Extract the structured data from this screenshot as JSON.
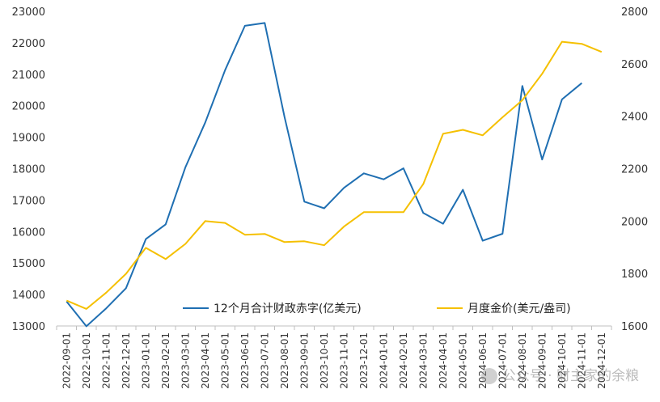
{
  "chart_data": {
    "type": "line",
    "categories": [
      "2022-09-01",
      "2022-10-01",
      "2022-11-01",
      "2022-12-01",
      "2023-01-01",
      "2023-02-01",
      "2023-03-01",
      "2023-04-01",
      "2023-05-01",
      "2023-06-01",
      "2023-07-01",
      "2023-08-01",
      "2023-09-01",
      "2023-10-01",
      "2023-11-01",
      "2023-12-01",
      "2024-01-01",
      "2024-02-01",
      "2024-03-01",
      "2024-04-01",
      "2024-05-01",
      "2024-06-01",
      "2024-07-01",
      "2024-08-01",
      "2024-09-01",
      "2024-10-01",
      "2024-11-01",
      "2024-12-01"
    ],
    "y_left": {
      "min": 13000,
      "max": 23000,
      "ticks": [
        "13000",
        "14000",
        "15000",
        "16000",
        "17000",
        "18000",
        "19000",
        "20000",
        "21000",
        "22000",
        "23000"
      ]
    },
    "y_right": {
      "min": 1600,
      "max": 2800,
      "ticks": [
        "1600",
        "1800",
        "2000",
        "2200",
        "2400",
        "2600",
        "2800"
      ]
    },
    "series": [
      {
        "name": "12个月合计财政赤字(亿美元)",
        "axis": "left",
        "color": "#1f6fb2",
        "values": [
          13780,
          12990,
          13560,
          14200,
          15760,
          16230,
          18050,
          19470,
          21130,
          22540,
          22630,
          19640,
          16950,
          16740,
          17390,
          17850,
          17660,
          18010,
          16590,
          16250,
          17330,
          15710,
          15930,
          20630,
          18290,
          20200,
          20720,
          null
        ]
      },
      {
        "name": "月度金价(美元/盎司)",
        "axis": "right",
        "color": "#f5c000",
        "values": [
          1697,
          1665,
          1727,
          1799,
          1898,
          1855,
          1913,
          2000,
          1993,
          1948,
          1951,
          1920,
          1923,
          1908,
          1979,
          2034,
          2034,
          2034,
          2141,
          2333,
          2348,
          2327,
          2396,
          2461,
          2562,
          2684,
          2676,
          2645
        ]
      }
    ],
    "legend": "bottom-right",
    "grid": false
  },
  "watermark": "公众号 · 财主家的余粮"
}
